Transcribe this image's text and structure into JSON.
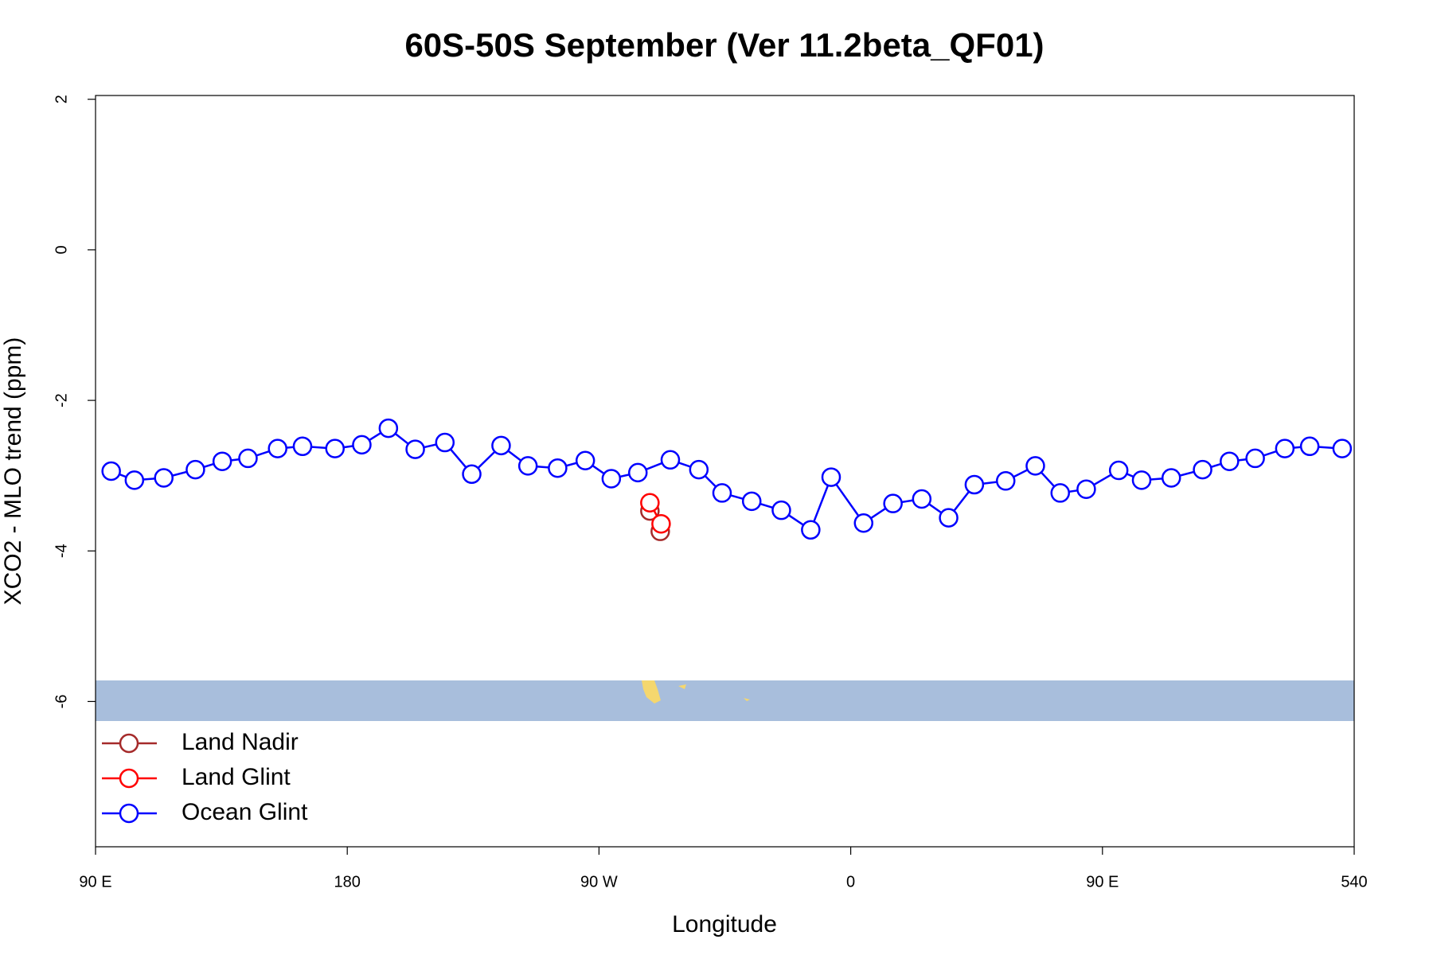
{
  "chart_data": {
    "type": "line",
    "title": "60S-50S September (Ver 11.2beta_QF01)",
    "x_label": "Longitude",
    "y_label": "XCO2 - MLO trend (ppm)",
    "xlim": [
      90,
      540
    ],
    "xticks": [
      {
        "value": 90,
        "label": "90 E"
      },
      180,
      {
        "value": 270,
        "label": "90 W"
      },
      {
        "value": 360,
        "label": "0"
      },
      {
        "value": 450,
        "label": "90 E"
      },
      540
    ],
    "ylim": [
      -7.93,
      2.05
    ],
    "yticks": [
      2,
      0,
      -2,
      -4,
      -6
    ],
    "legend": "bottomleft",
    "series": [
      {
        "name": "Land Nadir",
        "color": "#a52a2a",
        "x": [
          288.2,
          291.9
        ],
        "values": [
          -3.47,
          -3.74
        ]
      },
      {
        "name": "Land Glint",
        "color": "#ff0000",
        "x": [
          288.2,
          292.2
        ],
        "values": [
          -3.36,
          -3.64
        ]
      },
      {
        "name": "Ocean Glint",
        "color": "#0000ff",
        "x": [
          95.6,
          103.9,
          114.4,
          125.7,
          135.3,
          144.5,
          155.1,
          164.0,
          175.6,
          185.2,
          194.7,
          204.3,
          214.9,
          224.5,
          235.0,
          244.6,
          255.2,
          265.1,
          274.4,
          283.9,
          295.5,
          305.7,
          314.0,
          324.6,
          335.2,
          345.7,
          353.0,
          364.6,
          375.1,
          385.4,
          395.0,
          404.2,
          415.4,
          426.0,
          434.9,
          444.2,
          455.8,
          464.0,
          474.6,
          485.8,
          495.4,
          504.6,
          515.2,
          524.1,
          535.7
        ],
        "values": [
          -2.94,
          -3.06,
          -3.03,
          -2.92,
          -2.81,
          -2.77,
          -2.64,
          -2.61,
          -2.64,
          -2.59,
          -2.37,
          -2.65,
          -2.56,
          -2.98,
          -2.6,
          -2.87,
          -2.9,
          -2.8,
          -3.04,
          -2.96,
          -2.79,
          -2.92,
          -3.23,
          -3.34,
          -3.46,
          -3.72,
          -3.02,
          -3.63,
          -3.37,
          -3.31,
          -3.56,
          -3.12,
          -3.07,
          -2.87,
          -3.23,
          -3.18,
          -2.93,
          -3.06,
          -3.03,
          -2.92,
          -2.81,
          -2.77,
          -2.64,
          -2.61,
          -2.64
        ]
      }
    ]
  }
}
